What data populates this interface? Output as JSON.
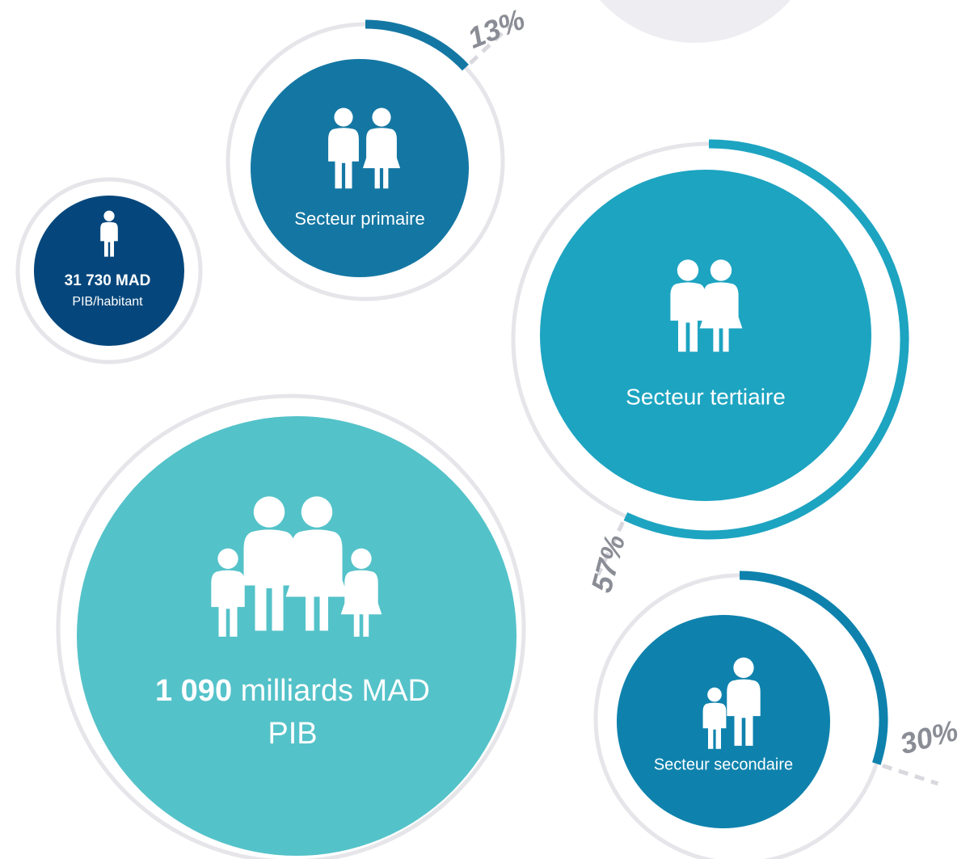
{
  "gdp": {
    "amount": "1 090",
    "unit": "milliards MAD",
    "label": "PIB"
  },
  "per_capita": {
    "amount": "31 730 MAD",
    "label": "PIB/habitant"
  },
  "sectors": [
    {
      "label": "Secteur primaire",
      "value": 13,
      "value_label": "13%"
    },
    {
      "label": "Secteur tertiaire",
      "value": 57,
      "value_label": "57%"
    },
    {
      "label": "Secteur secondaire",
      "value": 30,
      "value_label": "30%"
    }
  ]
}
